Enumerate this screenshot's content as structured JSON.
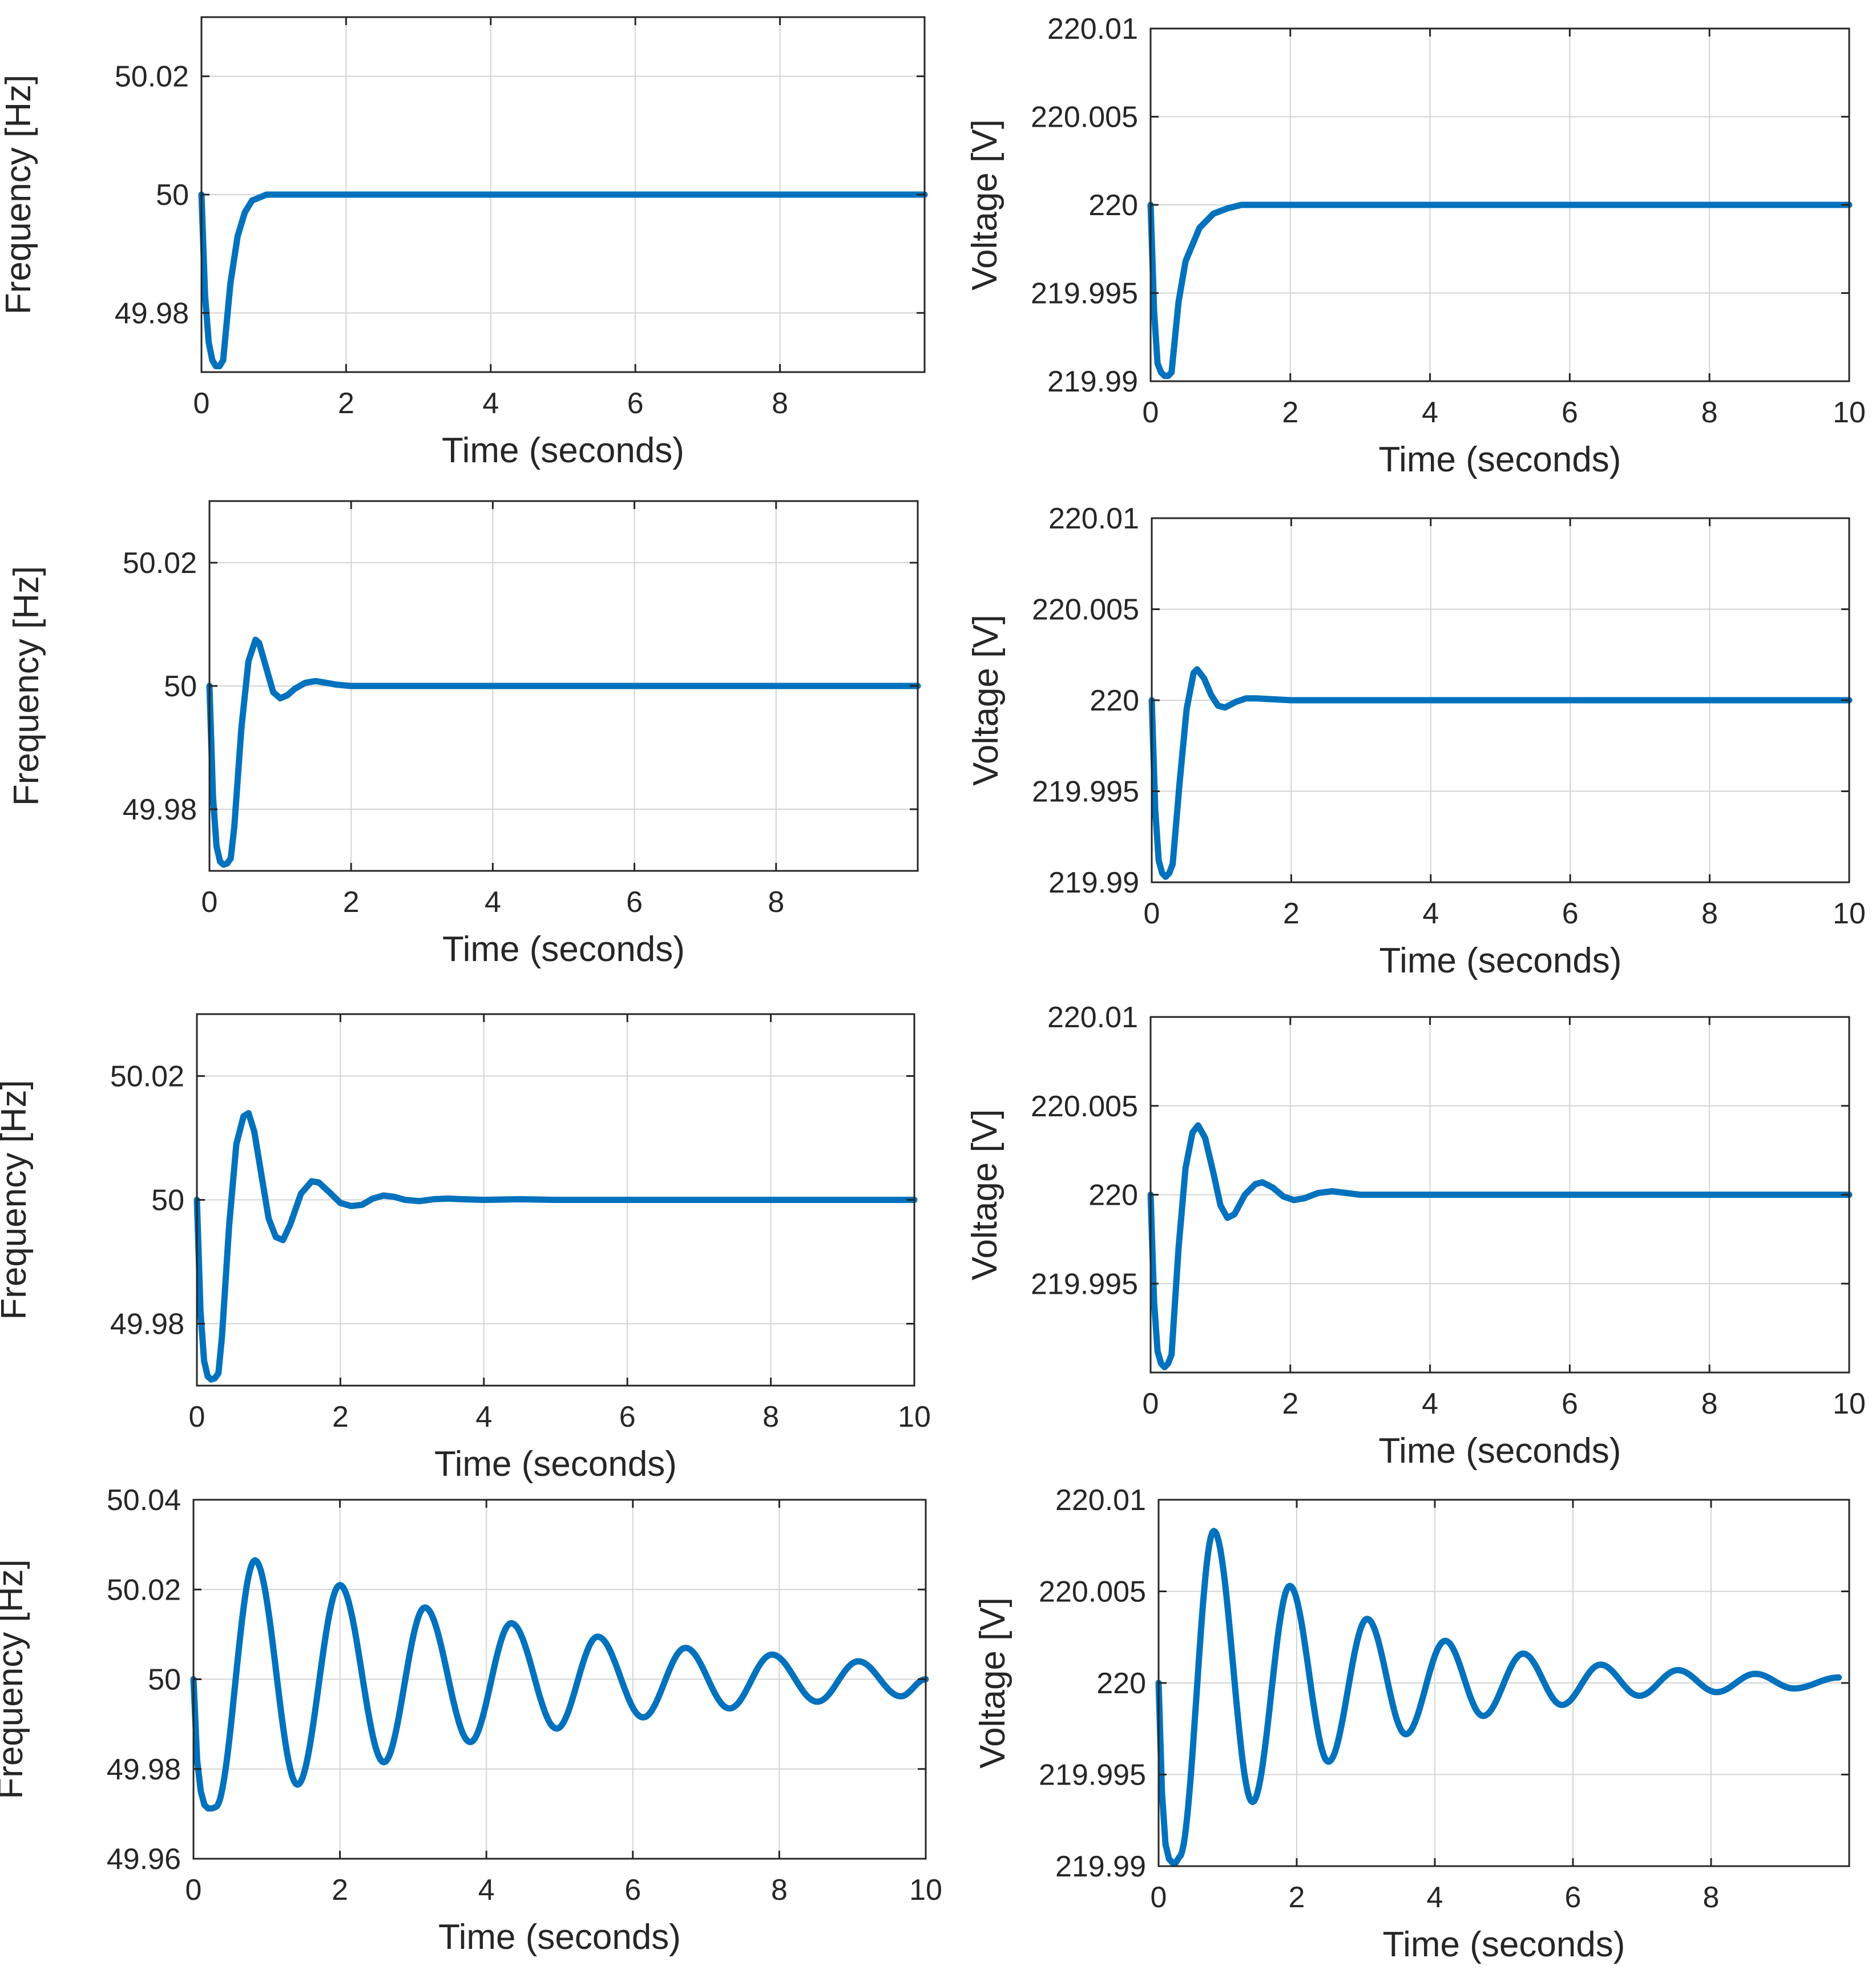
{
  "colors": {
    "series": "#0072BD",
    "axes": "#262626",
    "grid": "#d4d4d4"
  },
  "chart_data": [
    {
      "id": "f1",
      "type": "line",
      "title": "",
      "xlabel": "Time (seconds)",
      "ylabel": "Frequency [Hz]",
      "xlim": [
        0,
        10
      ],
      "ylim": [
        49.97,
        50.03
      ],
      "xticks": [
        0,
        2,
        4,
        6,
        8
      ],
      "xtick_labels": [
        "0",
        "2",
        "4",
        "6",
        "8"
      ],
      "yticks": [
        49.98,
        50,
        50.02
      ],
      "ytick_labels": [
        "49.98",
        "50",
        "50.02"
      ],
      "grid": true,
      "series": [
        {
          "name": "Frequency",
          "x": [
            0,
            0.05,
            0.1,
            0.15,
            0.2,
            0.25,
            0.3,
            0.4,
            0.5,
            0.6,
            0.7,
            0.8,
            0.9,
            1.0,
            1.2,
            1.5,
            2,
            4,
            6,
            8,
            10
          ],
          "y": [
            50.0,
            49.983,
            49.975,
            49.972,
            49.971,
            49.971,
            49.972,
            49.985,
            49.993,
            49.997,
            49.999,
            49.9995,
            50.0,
            50.0,
            50.0,
            50.0,
            50.0,
            50.0,
            50.0,
            50.0,
            50.0
          ]
        }
      ]
    },
    {
      "id": "v1",
      "type": "line",
      "title": "",
      "xlabel": "Time (seconds)",
      "ylabel": "Voltage [V]",
      "xlim": [
        0,
        10
      ],
      "ylim": [
        219.99,
        220.01
      ],
      "xticks": [
        0,
        2,
        4,
        6,
        8,
        10
      ],
      "xtick_labels": [
        "0",
        "2",
        "4",
        "6",
        "8",
        "10"
      ],
      "yticks": [
        219.99,
        219.995,
        220,
        220.005,
        220.01
      ],
      "ytick_labels": [
        "219.99",
        "219.995",
        "220",
        "220.005",
        "220.01"
      ],
      "grid": true,
      "series": [
        {
          "name": "Voltage",
          "x": [
            0,
            0.05,
            0.1,
            0.15,
            0.2,
            0.25,
            0.3,
            0.4,
            0.5,
            0.7,
            0.9,
            1.1,
            1.3,
            1.6,
            2,
            4,
            6,
            8,
            10
          ],
          "y": [
            220.0,
            219.994,
            219.991,
            219.9905,
            219.9903,
            219.9903,
            219.9905,
            219.9945,
            219.9968,
            219.9987,
            219.9995,
            219.9998,
            220.0,
            220.0,
            220.0,
            220.0,
            220.0,
            220.0,
            220.0
          ]
        }
      ]
    },
    {
      "id": "f2",
      "type": "line",
      "title": "",
      "xlabel": "Time (seconds)",
      "ylabel": "Frequency [Hz]",
      "xlim": [
        0,
        10
      ],
      "ylim": [
        49.97,
        50.03
      ],
      "xticks": [
        0,
        2,
        4,
        6,
        8
      ],
      "xtick_labels": [
        "0",
        "2",
        "4",
        "6",
        "8"
      ],
      "yticks": [
        49.98,
        50,
        50.02
      ],
      "ytick_labels": [
        "49.98",
        "50",
        "50.02"
      ],
      "grid": true,
      "series": [
        {
          "name": "Frequency",
          "x": [
            0,
            0.05,
            0.1,
            0.15,
            0.2,
            0.25,
            0.3,
            0.35,
            0.45,
            0.55,
            0.65,
            0.7,
            0.8,
            0.9,
            1.0,
            1.1,
            1.2,
            1.35,
            1.5,
            1.65,
            1.8,
            2.0,
            2.5,
            4,
            6,
            8,
            10
          ],
          "y": [
            50.0,
            49.982,
            49.974,
            49.9715,
            49.971,
            49.9712,
            49.972,
            49.977,
            49.993,
            50.004,
            50.0075,
            50.007,
            50.003,
            49.999,
            49.998,
            49.9985,
            49.9995,
            50.0005,
            50.0008,
            50.0005,
            50.0002,
            50.0,
            50.0,
            50.0,
            50.0,
            50.0,
            50.0
          ]
        }
      ]
    },
    {
      "id": "v2",
      "type": "line",
      "title": "",
      "xlabel": "Time (seconds)",
      "ylabel": "Voltage [V]",
      "xlim": [
        0,
        10
      ],
      "ylim": [
        219.99,
        220.01
      ],
      "xticks": [
        0,
        2,
        4,
        6,
        8,
        10
      ],
      "xtick_labels": [
        "0",
        "2",
        "4",
        "6",
        "8",
        "10"
      ],
      "yticks": [
        219.99,
        219.995,
        220,
        220.005,
        220.01
      ],
      "ytick_labels": [
        "219.99",
        "219.995",
        "220",
        "220.005",
        "220.01"
      ],
      "grid": true,
      "series": [
        {
          "name": "Voltage",
          "x": [
            0,
            0.05,
            0.1,
            0.15,
            0.2,
            0.25,
            0.3,
            0.4,
            0.5,
            0.6,
            0.65,
            0.75,
            0.85,
            0.95,
            1.05,
            1.2,
            1.35,
            1.5,
            2,
            4,
            6,
            8,
            10
          ],
          "y": [
            220.0,
            219.994,
            219.9912,
            219.9905,
            219.9903,
            219.9905,
            219.991,
            219.9955,
            219.9995,
            220.0015,
            220.0017,
            220.0012,
            220.0003,
            219.9997,
            219.9996,
            219.9999,
            220.0001,
            220.0001,
            220.0,
            220.0,
            220.0,
            220.0,
            220.0
          ]
        }
      ]
    },
    {
      "id": "f3",
      "type": "line",
      "title": "",
      "xlabel": "Time (seconds)",
      "ylabel": "Frequency [Hz]",
      "xlim": [
        0,
        10
      ],
      "ylim": [
        49.97,
        50.03
      ],
      "xticks": [
        0,
        2,
        4,
        6,
        8,
        10
      ],
      "xtick_labels": [
        "0",
        "2",
        "4",
        "6",
        "8",
        "10"
      ],
      "yticks": [
        49.98,
        50,
        50.02
      ],
      "ytick_labels": [
        "49.98",
        "50",
        "50.02"
      ],
      "grid": true,
      "series": [
        {
          "name": "Frequency",
          "x": [
            0,
            0.05,
            0.1,
            0.15,
            0.2,
            0.25,
            0.3,
            0.35,
            0.45,
            0.55,
            0.65,
            0.72,
            0.8,
            0.9,
            1.0,
            1.1,
            1.2,
            1.3,
            1.45,
            1.6,
            1.7,
            1.85,
            2.0,
            2.15,
            2.3,
            2.45,
            2.6,
            2.75,
            2.9,
            3.1,
            3.3,
            3.5,
            3.7,
            4,
            4.5,
            5,
            6,
            8,
            10
          ],
          "y": [
            50.0,
            49.982,
            49.974,
            49.9715,
            49.971,
            49.9712,
            49.972,
            49.978,
            49.996,
            50.009,
            50.0135,
            50.014,
            50.011,
            50.004,
            49.997,
            49.994,
            49.9935,
            49.996,
            50.001,
            50.003,
            50.0028,
            50.0012,
            49.9995,
            49.999,
            49.9992,
            50.0002,
            50.0007,
            50.0005,
            50.0,
            49.9998,
            50.0001,
            50.0002,
            50.0001,
            50.0,
            50.0001,
            50.0,
            50.0,
            50.0,
            50.0
          ]
        }
      ]
    },
    {
      "id": "v3",
      "type": "line",
      "title": "",
      "xlabel": "Time (seconds)",
      "ylabel": "Voltage [V]",
      "xlim": [
        0,
        10
      ],
      "ylim": [
        219.99,
        220.01
      ],
      "xticks": [
        0,
        2,
        4,
        6,
        8,
        10
      ],
      "xtick_labels": [
        "0",
        "2",
        "4",
        "6",
        "8",
        "10"
      ],
      "yticks": [
        219.995,
        220,
        220.005,
        220.01
      ],
      "ytick_labels": [
        "219.995",
        "220",
        "220.005",
        "220.01"
      ],
      "grid": true,
      "series": [
        {
          "name": "Voltage",
          "x": [
            0,
            0.05,
            0.1,
            0.15,
            0.2,
            0.25,
            0.3,
            0.4,
            0.5,
            0.6,
            0.68,
            0.78,
            0.9,
            1.0,
            1.1,
            1.2,
            1.35,
            1.5,
            1.6,
            1.75,
            1.9,
            2.05,
            2.2,
            2.4,
            2.6,
            2.8,
            3.0,
            3.5,
            4,
            6,
            8,
            10
          ],
          "y": [
            220.0,
            219.994,
            219.9912,
            219.9905,
            219.9903,
            219.9905,
            219.991,
            219.997,
            220.0015,
            220.0035,
            220.0039,
            220.0032,
            220.0012,
            219.9994,
            219.9987,
            219.9989,
            220.0,
            220.0006,
            220.0007,
            220.0004,
            219.9999,
            219.9997,
            219.9998,
            220.0001,
            220.0002,
            220.0001,
            220.0,
            220.0,
            220.0,
            220.0,
            220.0,
            220.0
          ]
        }
      ]
    },
    {
      "id": "f4",
      "type": "line",
      "title": "",
      "xlabel": "Time (seconds)",
      "ylabel": "Frequency [Hz]",
      "xlim": [
        0,
        10
      ],
      "ylim": [
        49.96,
        50.04
      ],
      "xticks": [
        0,
        2,
        4,
        6,
        8,
        10
      ],
      "xtick_labels": [
        "0",
        "2",
        "4",
        "6",
        "8",
        "10"
      ],
      "yticks": [
        49.96,
        49.98,
        50,
        50.02,
        50.04
      ],
      "ytick_labels": [
        "49.96",
        "49.98",
        "50",
        "50.02",
        "50.04"
      ],
      "grid": true,
      "damped_oscillation": {
        "steps": 400,
        "pre_x": [
          0,
          0.05,
          0.1,
          0.15,
          0.2,
          0.25,
          0.3
        ],
        "pre_y": [
          50.0,
          49.982,
          49.975,
          49.972,
          49.9712,
          49.9712,
          49.9715
        ],
        "t0": 0.3,
        "base": 50.0,
        "peak_times": [
          0.84,
          2.0,
          3.16,
          4.34,
          5.52,
          6.72,
          7.9,
          9.08
        ],
        "peaks": [
          50.0265,
          50.021,
          50.016,
          50.0125,
          50.0095,
          50.007,
          50.0055,
          50.004
        ],
        "trough_times": [
          1.42,
          2.6,
          3.78,
          4.96,
          6.14,
          7.32,
          8.52,
          9.66
        ],
        "troughs": [
          49.9765,
          49.9815,
          49.986,
          49.989,
          49.9915,
          49.9935,
          49.995,
          49.9962
        ],
        "x_end": 10.0,
        "y_end": 50.0
      },
      "series": [
        {
          "name": "Frequency"
        }
      ]
    },
    {
      "id": "v4",
      "type": "line",
      "title": "",
      "xlabel": "Time (seconds)",
      "ylabel": "Voltage [V]",
      "xlim": [
        0,
        10
      ],
      "ylim": [
        219.99,
        220.01
      ],
      "xticks": [
        0,
        2,
        4,
        6,
        8
      ],
      "xtick_labels": [
        "0",
        "2",
        "4",
        "6",
        "8"
      ],
      "yticks": [
        219.99,
        219.995,
        220,
        220.005,
        220.01
      ],
      "ytick_labels": [
        "219.99",
        "219.995",
        "220",
        "220.005",
        "220.01"
      ],
      "grid": true,
      "damped_oscillation": {
        "steps": 400,
        "pre_x": [
          0,
          0.05,
          0.1,
          0.15,
          0.2,
          0.25,
          0.3
        ],
        "pre_y": [
          220.0,
          219.994,
          219.9912,
          219.9904,
          219.9902,
          219.9902,
          219.9905
        ],
        "t0": 0.3,
        "base": 220.0,
        "peak_times": [
          0.8,
          1.9,
          3.02,
          4.15,
          5.28,
          6.4,
          7.52,
          8.64
        ],
        "peaks": [
          220.0083,
          220.0053,
          220.0035,
          220.0023,
          220.0016,
          220.001,
          220.0007,
          220.0005
        ],
        "trough_times": [
          1.36,
          2.46,
          3.58,
          4.7,
          5.84,
          6.96,
          8.08,
          9.2
        ],
        "troughs": [
          219.9935,
          219.9957,
          219.9972,
          219.9982,
          219.9988,
          219.9993,
          219.9995,
          219.9997
        ],
        "x_end": 9.85,
        "y_end": 220.0003
      },
      "series": [
        {
          "name": "Voltage"
        }
      ]
    }
  ]
}
